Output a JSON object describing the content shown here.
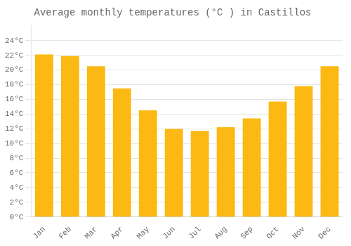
{
  "chart_data": {
    "type": "bar",
    "title": "Average monthly temperatures (°C ) in Castillos",
    "categories": [
      "Jan",
      "Feb",
      "Mar",
      "Apr",
      "May",
      "Jun",
      "Jul",
      "Aug",
      "Sep",
      "Oct",
      "Nov",
      "Dec"
    ],
    "values": [
      22.1,
      21.9,
      20.5,
      17.5,
      14.5,
      12.0,
      11.7,
      12.2,
      13.4,
      15.7,
      17.8,
      20.5
    ],
    "color": "#FDB913",
    "ylim": [
      0,
      26
    ],
    "yticks": [
      {
        "value": 0,
        "label": "0°C"
      },
      {
        "value": 2,
        "label": "2°C"
      },
      {
        "value": 4,
        "label": "4°C"
      },
      {
        "value": 6,
        "label": "6°C"
      },
      {
        "value": 8,
        "label": "8°C"
      },
      {
        "value": 10,
        "label": "10°C"
      },
      {
        "value": 12,
        "label": "12°C"
      },
      {
        "value": 14,
        "label": "14°C"
      },
      {
        "value": 16,
        "label": "16°C"
      },
      {
        "value": 18,
        "label": "18°C"
      },
      {
        "value": 20,
        "label": "20°C"
      },
      {
        "value": 22,
        "label": "22°C"
      },
      {
        "value": 24,
        "label": "24°C"
      }
    ],
    "grid": true
  }
}
